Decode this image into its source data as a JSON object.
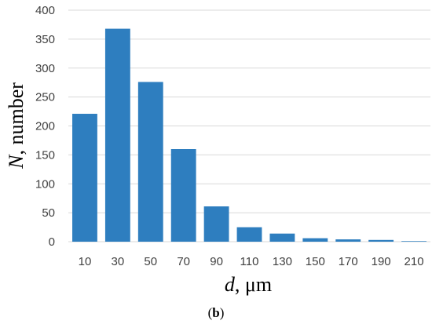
{
  "chart_data": {
    "type": "bar",
    "title": "",
    "categories": [
      "10",
      "30",
      "50",
      "70",
      "90",
      "110",
      "130",
      "150",
      "170",
      "190",
      "210"
    ],
    "values": [
      221,
      368,
      276,
      160,
      61,
      25,
      14,
      6,
      4,
      3,
      1
    ],
    "ylim": [
      0,
      400
    ],
    "yticks": [
      0,
      50,
      100,
      150,
      200,
      250,
      300,
      350,
      400
    ],
    "grid": true,
    "legend": "none",
    "bar_color": "#2E7EBF",
    "grid_color": "#D9D9D9",
    "xlabel": {
      "var": "d",
      "rest": ", μm"
    },
    "ylabel": {
      "var": "N",
      "rest": ", number"
    }
  },
  "caption": {
    "open": "(",
    "bold": "b",
    "close": ")"
  }
}
